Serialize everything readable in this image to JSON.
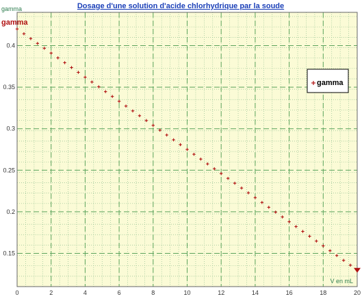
{
  "chart_data": {
    "type": "scatter",
    "title": "Dosage d'une solution d'acide chlorhydrique par la soude",
    "xlabel": "V en mL",
    "ylabel": "gamma",
    "xlim": [
      0,
      20
    ],
    "ylim": [
      0.11,
      0.44
    ],
    "xticks": [
      0,
      2,
      4,
      6,
      8,
      10,
      12,
      14,
      16,
      18,
      20
    ],
    "yticks": [
      0.15,
      0.2,
      0.25,
      0.3,
      0.35,
      0.4
    ],
    "x_tick_labels": [
      "0",
      "2",
      "4",
      "6",
      "8",
      "10",
      "12",
      "14",
      "16",
      "18",
      "20"
    ],
    "y_tick_labels": [
      "0.15",
      "0.2",
      "0.25",
      "0.3",
      "0.35",
      "0.4"
    ],
    "grid": true,
    "legend_position": "right",
    "series": [
      {
        "name": "gamma",
        "color": "#b01010",
        "marker": "plus",
        "x": [
          0,
          0.4,
          0.8,
          1.2,
          1.6,
          2,
          2.4,
          2.8,
          3.2,
          3.6,
          4,
          4.4,
          4.8,
          5.2,
          5.6,
          6,
          6.4,
          6.8,
          7.2,
          7.6,
          8,
          8.4,
          8.8,
          9.2,
          9.6,
          10,
          10.4,
          10.8,
          11.2,
          11.6,
          12,
          12.4,
          12.8,
          13.2,
          13.6,
          14,
          14.4,
          14.8,
          15.2,
          15.6,
          16,
          16.4,
          16.8,
          17.2,
          17.6,
          18,
          18.4,
          18.8,
          19.2,
          19.6,
          20
        ],
        "y": [
          0.42,
          0.4142,
          0.4084,
          0.4026,
          0.3968,
          0.391,
          0.3852,
          0.3794,
          0.3736,
          0.3678,
          0.362,
          0.3562,
          0.3504,
          0.3446,
          0.3388,
          0.333,
          0.3272,
          0.3214,
          0.3156,
          0.3098,
          0.304,
          0.2982,
          0.2924,
          0.2866,
          0.2808,
          0.275,
          0.2692,
          0.2634,
          0.2576,
          0.2518,
          0.246,
          0.2402,
          0.2344,
          0.2286,
          0.2228,
          0.217,
          0.2112,
          0.2054,
          0.1996,
          0.1938,
          0.188,
          0.1822,
          0.1764,
          0.1706,
          0.1648,
          0.159,
          0.1532,
          0.1474,
          0.1416,
          0.1358,
          0.13
        ]
      }
    ]
  },
  "legend": {
    "label": "gamma"
  },
  "series_corner_label": "gamma",
  "colors": {
    "plot_background": "#fbfbd6",
    "major_grid": "#5ba35b",
    "minor_grid": "#8fbf8f",
    "axis_text": "#2e7d4f",
    "title": "#1a3fb8",
    "series": "#b01010"
  }
}
